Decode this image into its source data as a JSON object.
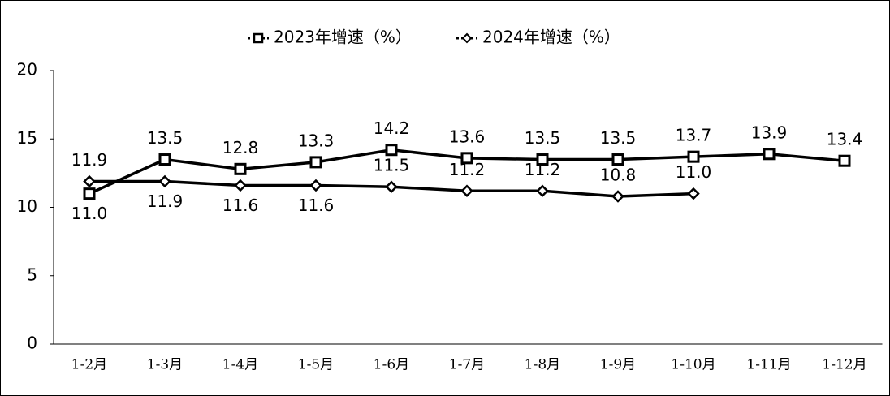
{
  "chart_data": {
    "type": "line",
    "categories": [
      "1-2月",
      "1-3月",
      "1-4月",
      "1-5月",
      "1-6月",
      "1-7月",
      "1-8月",
      "1-9月",
      "1-10月",
      "1-11月",
      "1-12月"
    ],
    "series": [
      {
        "name": "2023年增速（%）",
        "color": "#000000",
        "marker": "square",
        "values": [
          11.0,
          13.5,
          12.8,
          13.3,
          14.2,
          13.6,
          13.5,
          13.5,
          13.7,
          13.9,
          13.4
        ],
        "value_labels": [
          "11.0",
          "13.5",
          "12.8",
          "13.3",
          "14.2",
          "13.6",
          "13.5",
          "13.5",
          "13.7",
          "13.9",
          "13.4"
        ]
      },
      {
        "name": "2024年增速（%）",
        "color": "#000000",
        "marker": "diamond",
        "values": [
          11.9,
          11.9,
          11.6,
          11.6,
          11.5,
          11.2,
          11.2,
          10.8,
          11.0,
          null,
          null
        ],
        "value_labels": [
          "11.9",
          "11.9",
          "11.6",
          "11.6",
          "11.5",
          "11.2",
          "11.2",
          "10.8",
          "11.0",
          null,
          null
        ]
      }
    ],
    "ylim": [
      0,
      20
    ],
    "yticks": [
      0,
      5,
      10,
      15,
      20
    ],
    "grid": false,
    "legend": "top"
  }
}
